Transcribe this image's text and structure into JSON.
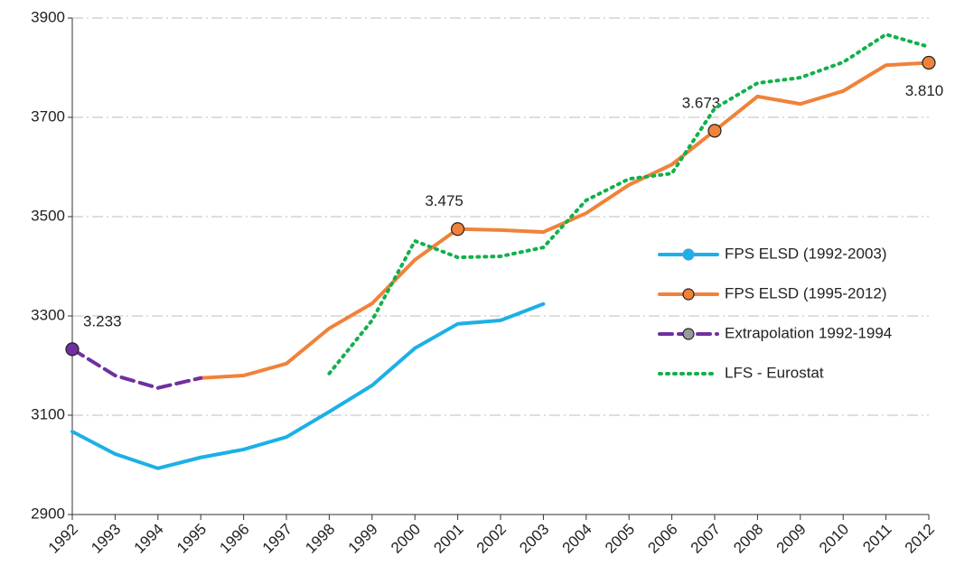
{
  "chart_data": {
    "type": "line",
    "x": [
      1992,
      1993,
      1994,
      1995,
      1996,
      1997,
      1998,
      1999,
      2000,
      2001,
      2002,
      2003,
      2004,
      2005,
      2006,
      2007,
      2008,
      2009,
      2010,
      2011,
      2012
    ],
    "xlim": [
      1992,
      2012
    ],
    "xticks": [
      1992,
      1993,
      1994,
      1995,
      1996,
      1997,
      1998,
      1999,
      2000,
      2001,
      2002,
      2003,
      2004,
      2005,
      2006,
      2007,
      2008,
      2009,
      2010,
      2011,
      2012
    ],
    "ylim": [
      2900,
      3900
    ],
    "yticks": [
      2900,
      3100,
      3300,
      3500,
      3700,
      3900
    ],
    "grid": true,
    "legend": "right",
    "series": [
      {
        "name": "FPS ELSD (1992-2003)",
        "color": "#1cb0e6",
        "style": "solid",
        "marker": true,
        "values": [
          3067,
          3022,
          2993,
          3015,
          3031,
          3056,
          3107,
          3160,
          3235,
          3284,
          3291,
          3324,
          null,
          null,
          null,
          null,
          null,
          null,
          null,
          null,
          null
        ]
      },
      {
        "name": "FPS ELSD (1995-2012)",
        "color": "#f0823a",
        "style": "solid",
        "marker": true,
        "values": [
          null,
          null,
          null,
          3175,
          3180,
          3204,
          3275,
          3325,
          3413,
          3475,
          3473,
          3469,
          3507,
          3564,
          3605,
          3673,
          3742,
          3727,
          3753,
          3805,
          3810
        ],
        "value_labels": [
          null,
          null,
          null,
          null,
          null,
          null,
          null,
          null,
          null,
          "3.475",
          null,
          null,
          null,
          null,
          null,
          "3.673",
          null,
          null,
          null,
          null,
          "3.810"
        ]
      },
      {
        "name": "Extrapolation 1992-1994",
        "color": "#7030a0",
        "style": "dashed",
        "marker": true,
        "values": [
          3233,
          3180,
          3155,
          3175,
          null,
          null,
          null,
          null,
          null,
          null,
          null,
          null,
          null,
          null,
          null,
          null,
          null,
          null,
          null,
          null,
          null
        ],
        "value_labels": [
          "3.233",
          null,
          null,
          null,
          null,
          null,
          null,
          null,
          null,
          null,
          null,
          null,
          null,
          null,
          null,
          null,
          null,
          null,
          null,
          null,
          null
        ]
      },
      {
        "name": "LFS - Eurostat",
        "color": "#12b04c",
        "style": "dotted",
        "marker": false,
        "values": [
          null,
          null,
          null,
          null,
          null,
          null,
          3184,
          3291,
          3451,
          3418,
          3420,
          3438,
          3533,
          3576,
          3587,
          3718,
          3769,
          3780,
          3811,
          3867,
          3842
        ]
      }
    ]
  }
}
